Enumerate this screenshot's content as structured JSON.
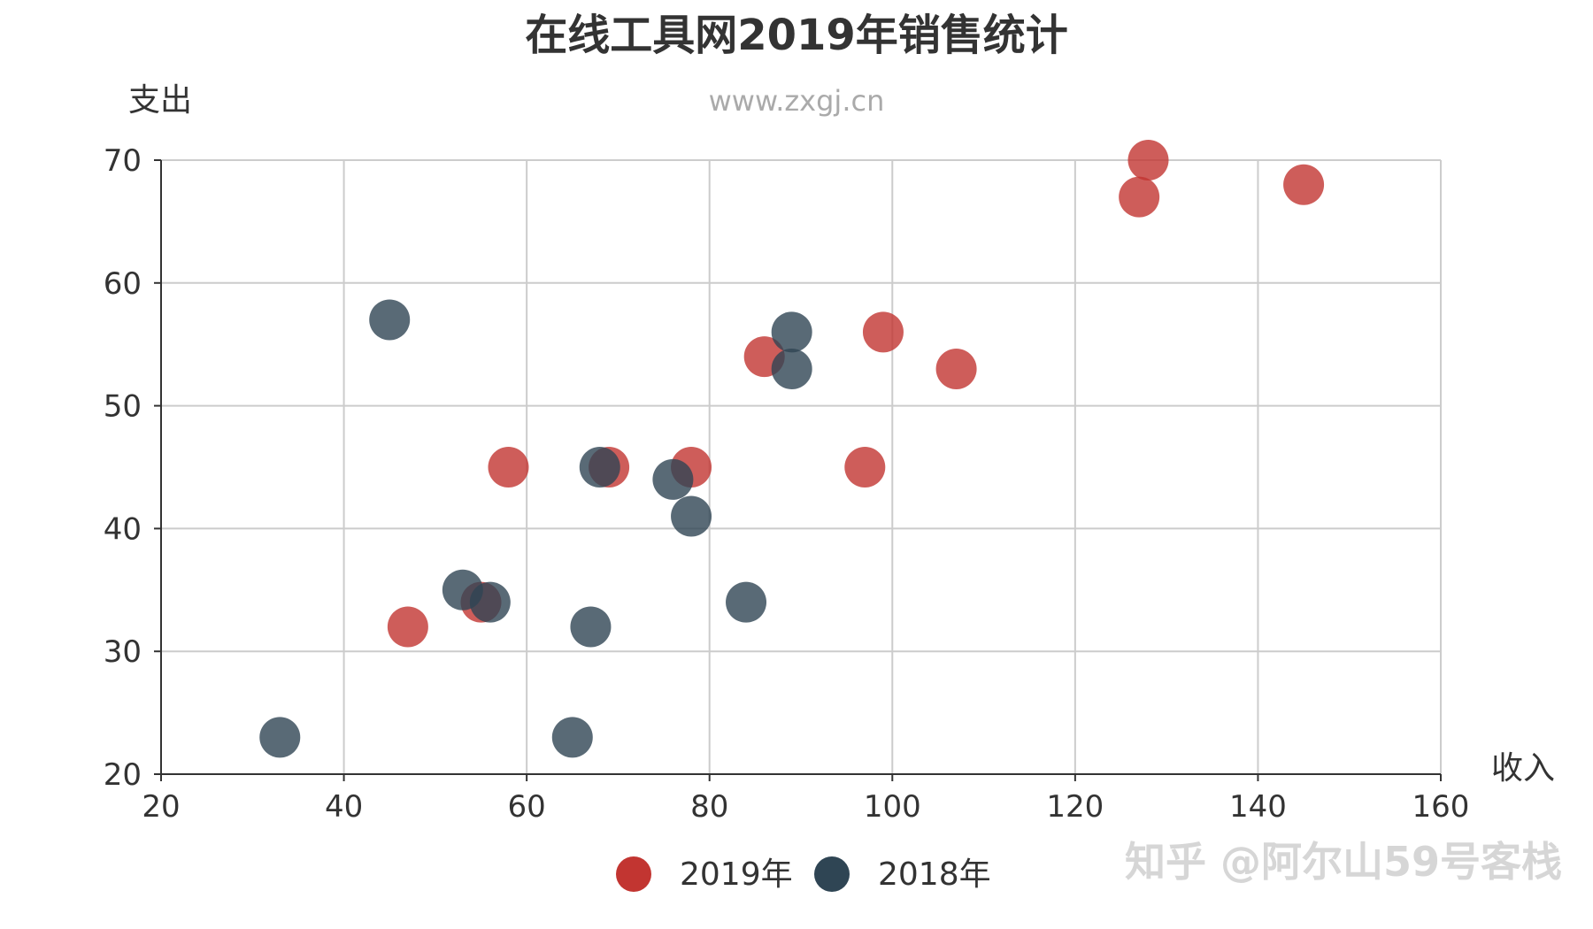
{
  "chart_data": {
    "type": "scatter",
    "title": "在线工具网2019年销售统计",
    "subtitle": "www.zxgj.cn",
    "xlabel": "收入",
    "ylabel": "支出",
    "xlim": [
      20,
      160
    ],
    "ylim": [
      20,
      70
    ],
    "xticks": [
      20,
      40,
      60,
      80,
      100,
      120,
      140,
      160
    ],
    "yticks": [
      20,
      30,
      40,
      50,
      60,
      70
    ],
    "grid": true,
    "legend_position": "bottom-center",
    "series": [
      {
        "name": "2019年",
        "color": "#c23531",
        "points": [
          [
            47,
            32
          ],
          [
            55,
            34
          ],
          [
            58,
            45
          ],
          [
            69,
            45
          ],
          [
            78,
            45
          ],
          [
            86,
            54
          ],
          [
            97,
            45
          ],
          [
            99,
            56
          ],
          [
            107,
            53
          ],
          [
            127,
            67
          ],
          [
            128,
            70
          ],
          [
            145,
            68
          ]
        ]
      },
      {
        "name": "2018年",
        "color": "#2f4554",
        "points": [
          [
            33,
            23
          ],
          [
            45,
            57
          ],
          [
            53,
            35
          ],
          [
            56,
            34
          ],
          [
            65,
            23
          ],
          [
            67,
            32
          ],
          [
            68,
            45
          ],
          [
            76,
            44
          ],
          [
            78,
            41
          ],
          [
            84,
            34
          ],
          [
            89,
            56
          ],
          [
            89,
            53
          ]
        ]
      }
    ]
  },
  "watermark": "知乎 @阿尔山59号客栈"
}
